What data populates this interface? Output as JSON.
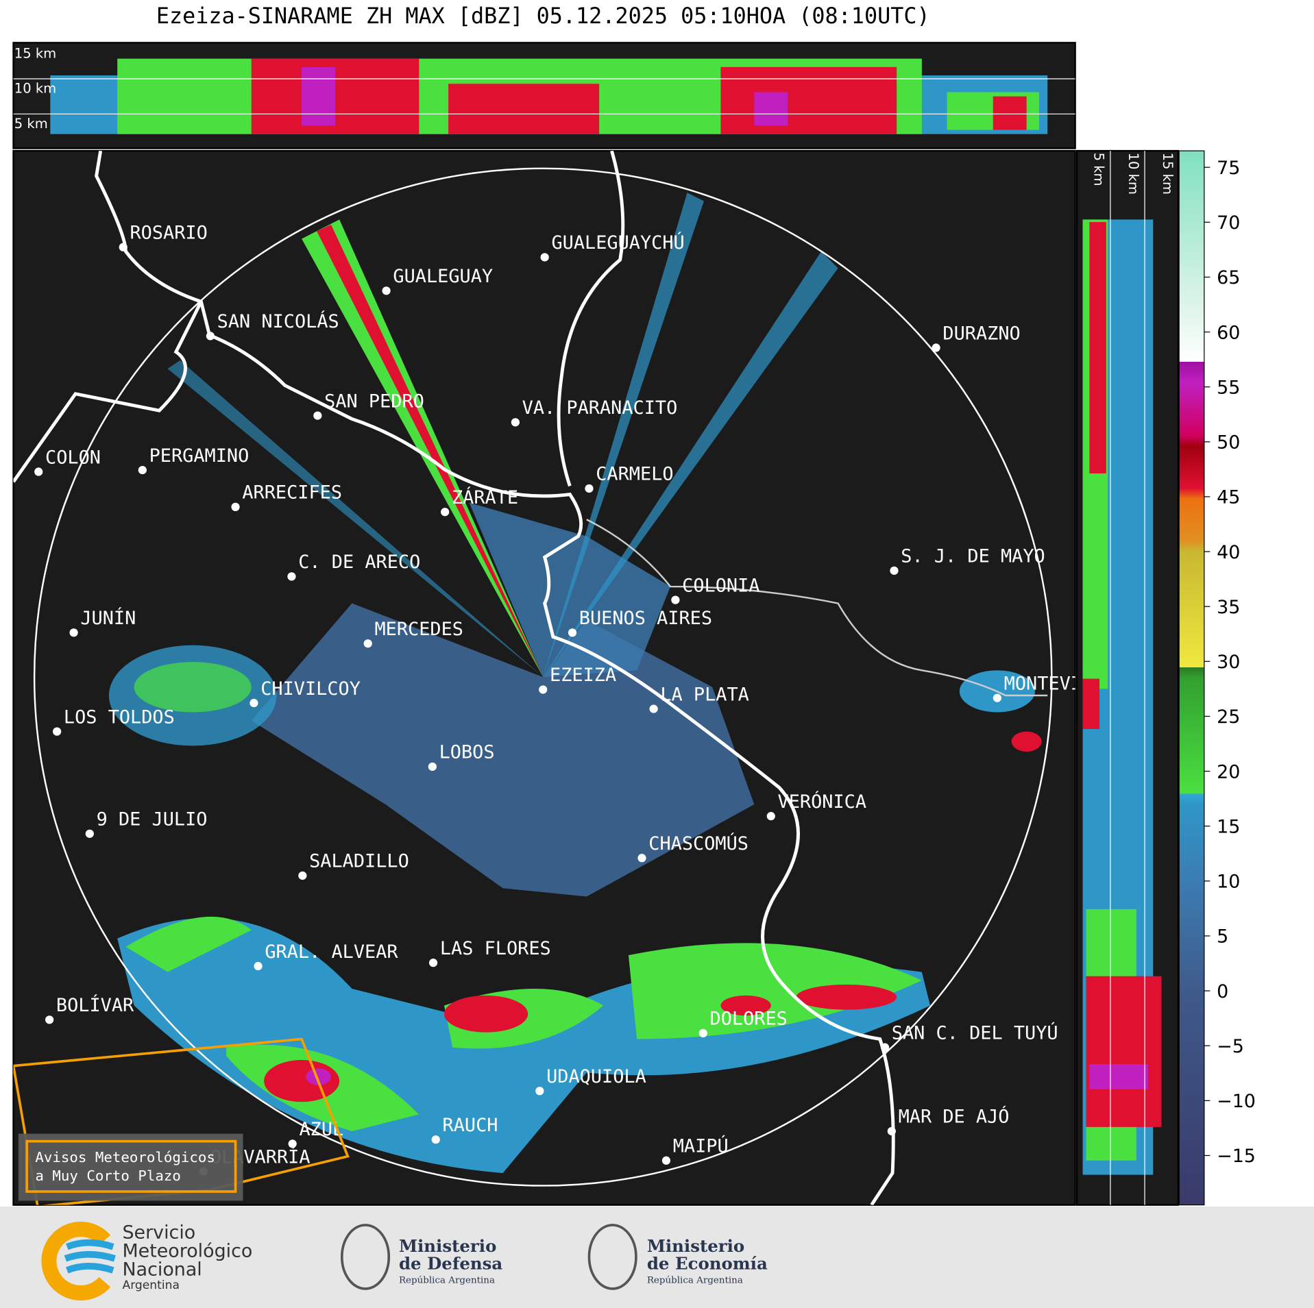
{
  "title": "Ezeiza-SINARAME ZH MAX [dBZ] 05.12.2025 05:10HOA (08:10UTC)",
  "top_panel": {
    "levels": [
      "15 km",
      "10 km",
      "5 km"
    ]
  },
  "side_panel": {
    "levels": [
      "5 km",
      "10 km",
      "15 km"
    ]
  },
  "colorbar": {
    "lim": [
      -19.5,
      76.5
    ],
    "ticks": [
      {
        "value": -15,
        "label": "−15"
      },
      {
        "value": -10,
        "label": "−10"
      },
      {
        "value": -5,
        "label": "−5"
      },
      0,
      5,
      10,
      15,
      20,
      25,
      30,
      35,
      40,
      45,
      50,
      55,
      60,
      65,
      70,
      75
    ]
  },
  "cities": [
    "ROSARIO",
    "GUALEGUAYCHÚ",
    "GUALEGUAY",
    "SAN NICOLÁS",
    "DURAZNO",
    "SAN PEDRO",
    "VA. PARANACITO",
    "COLON",
    "PERGAMINO",
    "CARMELO",
    "ARRECIFES",
    "ZÁRATE",
    "C. DE ARECO",
    "S. J. DE MAYO",
    "COLONIA",
    "BUENOS AIRES",
    "JUNÍN",
    "MERCEDES",
    "EZEIZA",
    "MONTEVIDEO",
    "CHIVILCOY",
    "LA PLATA",
    "LOS TOLDOS",
    "LOBOS",
    "VERÓNICA",
    "9 DE JULIO",
    "CHASCOMÚS",
    "SALADILLO",
    "GRAL. ALVEAR",
    "LAS FLORES",
    "BOLÍVAR",
    "DOLORES",
    "SAN C. DEL TUYÚ",
    "UDAQUIOLA",
    "MAR DE AJÓ",
    "AZUL",
    "RAUCH",
    "MAIPÚ",
    "OLAVARRÍA"
  ],
  "warning": {
    "line1": "Avisos Meteorológicos",
    "line2": "a Muy Corto Plazo"
  },
  "footer": {
    "smn": [
      "Servicio",
      "Meteorológico",
      "Nacional",
      "Argentina"
    ],
    "defensa": [
      "Ministerio",
      "de Defensa",
      "República Argentina"
    ],
    "economia": [
      "Ministerio",
      "de Economía",
      "República Argentina"
    ]
  }
}
